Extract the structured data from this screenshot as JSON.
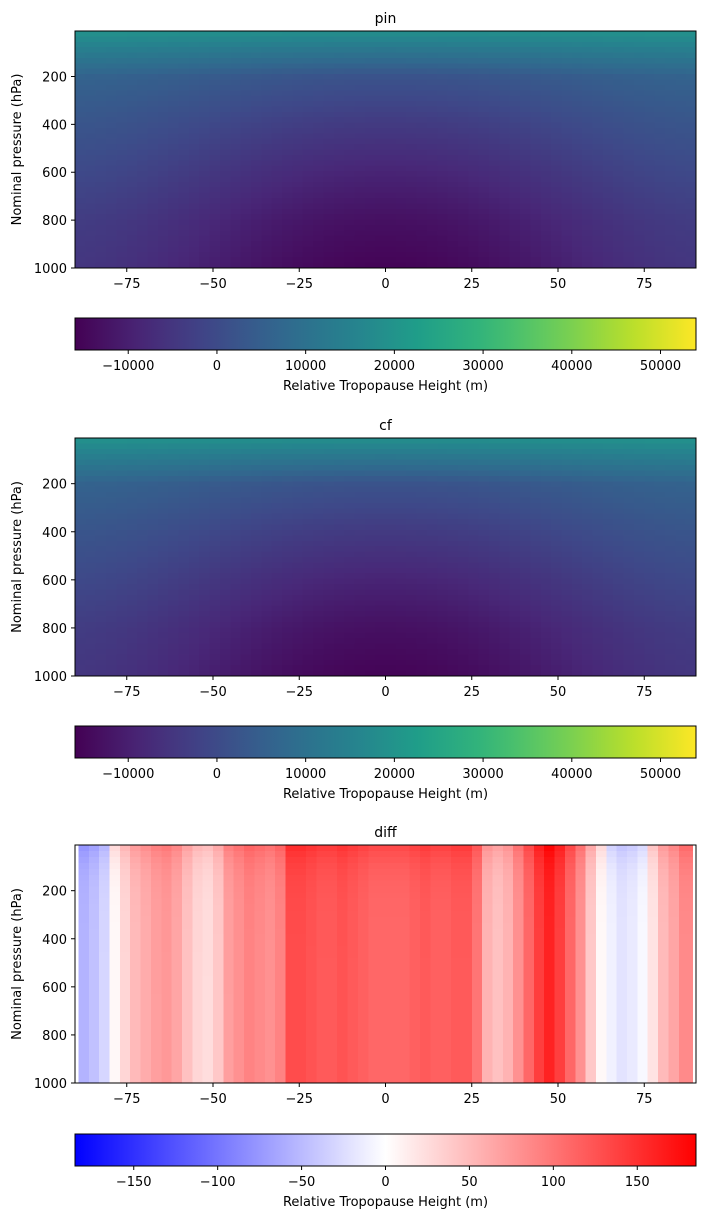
{
  "chart_data": [
    {
      "type": "heatmap",
      "title": "pin",
      "ylabel": "Nominal pressure (hPa)",
      "xlabel": "",
      "xlim": [
        -90,
        90
      ],
      "ylim": [
        1000,
        10
      ],
      "xticks": [
        -75,
        -50,
        -25,
        0,
        25,
        50,
        75
      ],
      "yticks": [
        200,
        400,
        600,
        800,
        1000
      ],
      "colormap": "viridis",
      "colorbar": {
        "label": "Relative Tropopause Height (m)",
        "range": [
          -16000,
          54000
        ],
        "ticks": [
          -10000,
          0,
          10000,
          20000,
          30000,
          40000,
          50000
        ]
      },
      "value_profile": {
        "pressure": [
          10,
          200,
          400,
          600,
          800,
          1000
        ],
        "value_at_equator": [
          18500,
          2000,
          -4000,
          -9000,
          -13000,
          -15500
        ],
        "value_at_poles": [
          19500,
          6000,
          2500,
          -500,
          -3500,
          -5000
        ]
      }
    },
    {
      "type": "heatmap",
      "title": "cf",
      "ylabel": "Nominal pressure (hPa)",
      "xlabel": "",
      "xlim": [
        -90,
        90
      ],
      "ylim": [
        1000,
        10
      ],
      "xticks": [
        -75,
        -50,
        -25,
        0,
        25,
        50,
        75
      ],
      "yticks": [
        200,
        400,
        600,
        800,
        1000
      ],
      "colormap": "viridis",
      "colorbar": {
        "label": "Relative Tropopause Height (m)",
        "range": [
          -16000,
          54000
        ],
        "ticks": [
          -10000,
          0,
          10000,
          20000,
          30000,
          40000,
          50000
        ]
      },
      "value_profile": {
        "pressure": [
          10,
          200,
          400,
          600,
          800,
          1000
        ],
        "value_at_equator": [
          18500,
          2000,
          -4000,
          -9000,
          -13000,
          -15500
        ],
        "value_at_poles": [
          19500,
          6000,
          2500,
          -500,
          -3500,
          -5000
        ]
      }
    },
    {
      "type": "heatmap",
      "title": "diff",
      "ylabel": "Nominal pressure (hPa)",
      "xlabel": "",
      "xlim": [
        -90,
        90
      ],
      "ylim": [
        1000,
        10
      ],
      "xticks": [
        -75,
        -50,
        -25,
        0,
        25,
        50,
        75
      ],
      "yticks": [
        200,
        400,
        600,
        800,
        1000
      ],
      "colormap": "bwr",
      "colorbar": {
        "label": "Relative Tropopause Height (m)",
        "range": [
          -185,
          185
        ],
        "ticks": [
          -150,
          -100,
          -50,
          0,
          50,
          100,
          150
        ]
      },
      "column_values": {
        "latitude": [
          -87,
          -84,
          -81,
          -78,
          -75,
          -72,
          -69,
          -66,
          -63,
          -60,
          -57,
          -54,
          -51,
          -48,
          -45,
          -42,
          -39,
          -36,
          -33,
          -30,
          -27,
          -24,
          -21,
          -18,
          -15,
          -12,
          -9,
          -6,
          -3,
          0,
          3,
          6,
          9,
          12,
          15,
          18,
          21,
          24,
          27,
          30,
          33,
          36,
          39,
          42,
          45,
          48,
          51,
          54,
          57,
          60,
          63,
          66,
          69,
          72,
          75,
          78,
          81,
          84,
          87
        ],
        "value": [
          -55,
          -45,
          -30,
          5,
          30,
          50,
          60,
          70,
          75,
          65,
          45,
          30,
          25,
          40,
          70,
          80,
          90,
          85,
          80,
          90,
          130,
          130,
          125,
          120,
          120,
          125,
          120,
          115,
          110,
          110,
          110,
          110,
          115,
          120,
          115,
          115,
          120,
          120,
          100,
          55,
          45,
          55,
          80,
          110,
          140,
          160,
          140,
          110,
          80,
          40,
          5,
          -10,
          -20,
          -15,
          -5,
          20,
          50,
          65,
          85
        ]
      },
      "top_enhancement": 25
    }
  ]
}
